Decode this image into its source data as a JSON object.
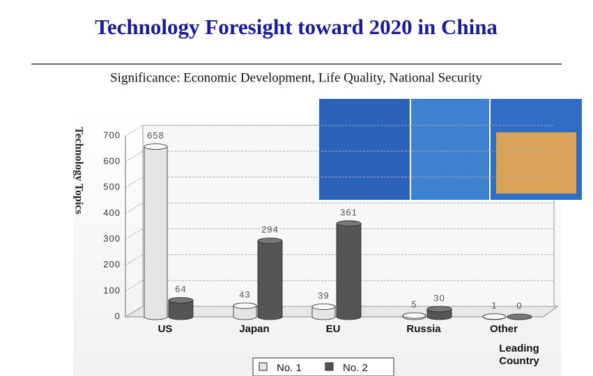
{
  "chart_data": {
    "type": "bar",
    "title": "Technology Foresight toward 2020 in China",
    "subtitle": "Significance:  Economic Development, Life Quality, National Security",
    "y_label": "Technology Topics",
    "x_label": "Leading Country",
    "categories": [
      "US",
      "Japan",
      "EU",
      "Russia",
      "Other"
    ],
    "series": [
      {
        "name": "No. 1",
        "color": "#e4e4e4",
        "values": [
          658,
          43,
          39,
          5,
          1
        ]
      },
      {
        "name": "No. 2",
        "color": "#555555",
        "values": [
          64,
          294,
          361,
          30,
          0
        ]
      }
    ],
    "ylim": [
      0,
      700
    ],
    "yticks": [
      0,
      100,
      200,
      300,
      400,
      500,
      600,
      700
    ],
    "grid": true
  }
}
